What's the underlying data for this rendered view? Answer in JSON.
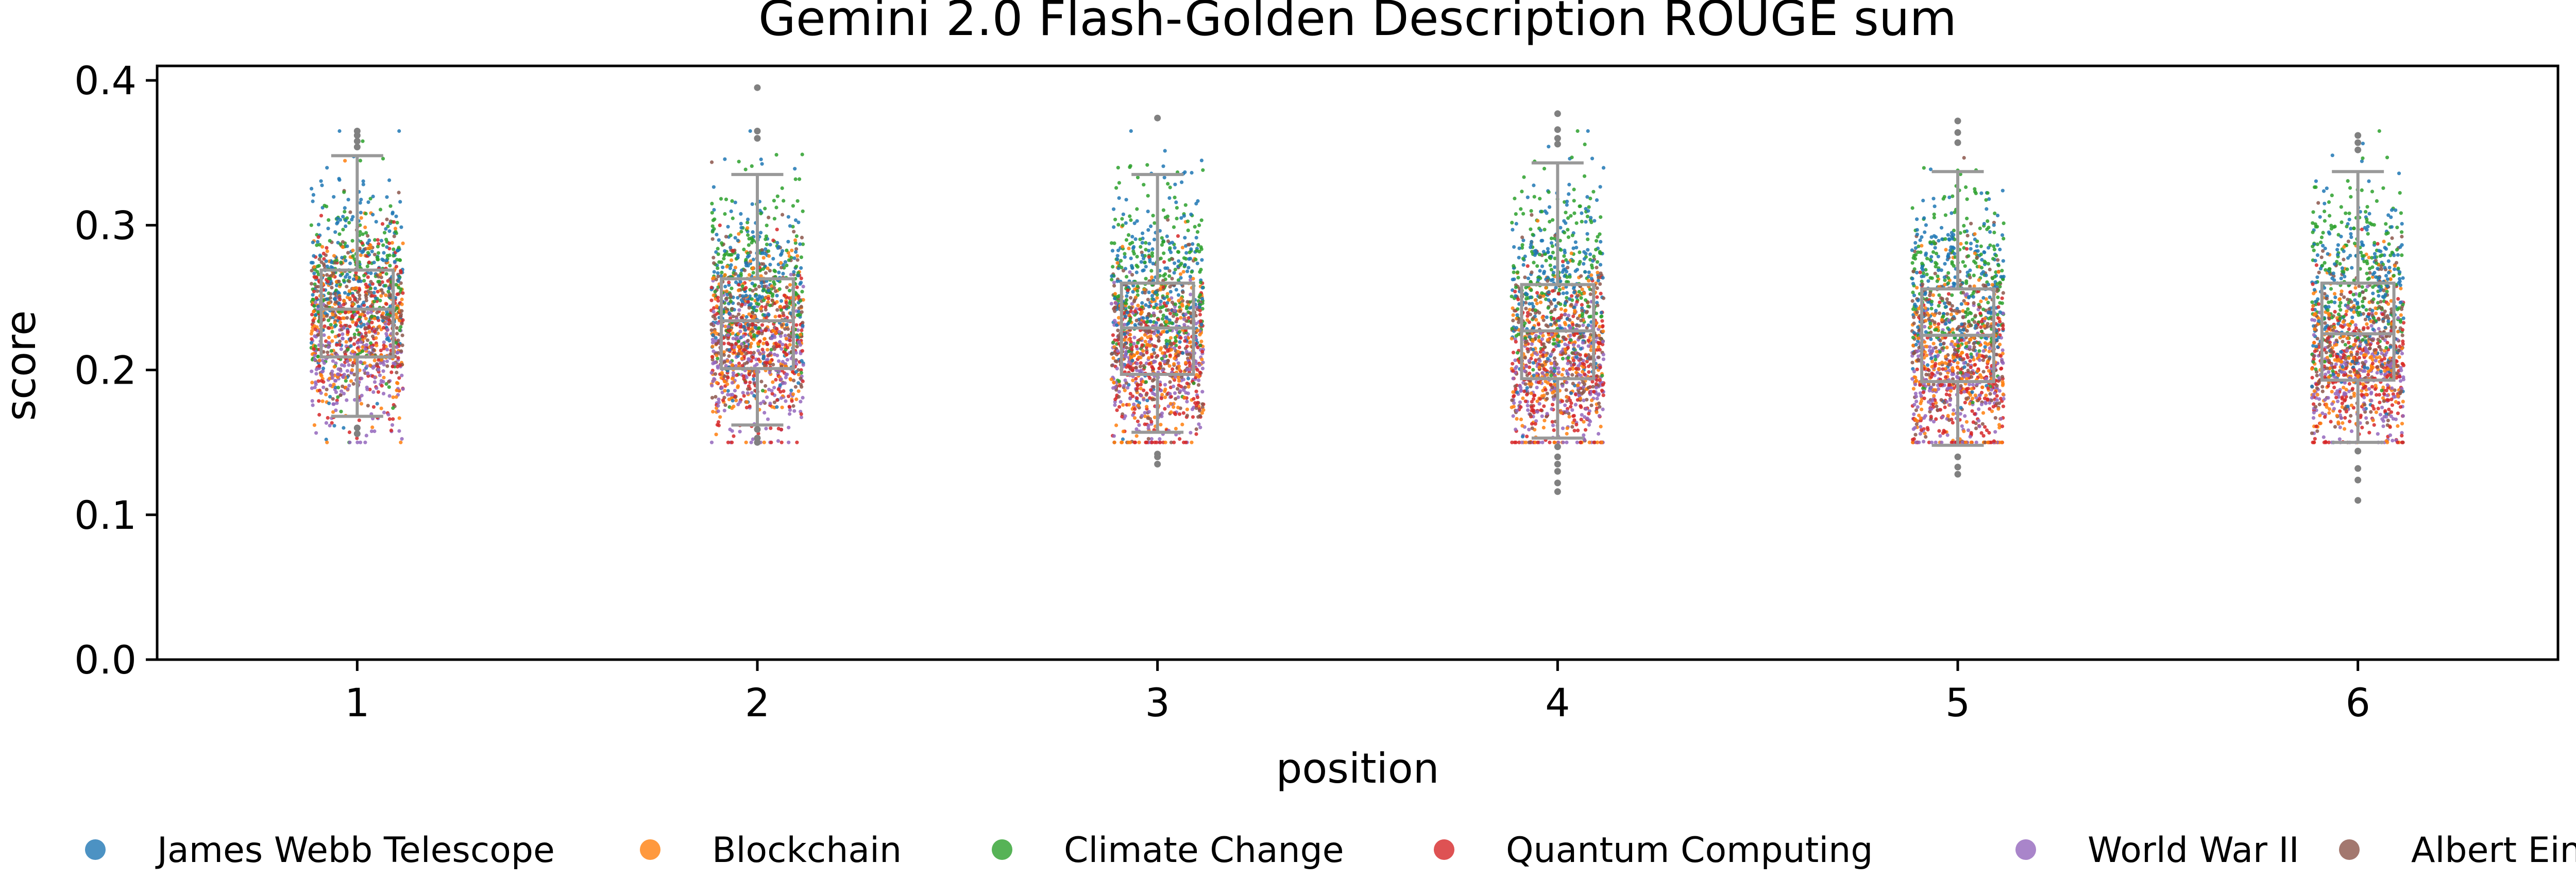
{
  "chart_data": {
    "type": "box",
    "title": "Gemini 2.0 Flash-Golden Description ROUGE sum",
    "xlabel": "position",
    "ylabel": "score",
    "ylim": [
      0.0,
      0.41
    ],
    "yticks": [
      "0.0",
      "0.1",
      "0.2",
      "0.3",
      "0.4"
    ],
    "categories": [
      "1",
      "2",
      "3",
      "4",
      "5",
      "6"
    ],
    "grid": false,
    "legend_position": "bottom",
    "overlay": "jittered-strip-points",
    "boxes": [
      {
        "position": "1",
        "whisker_low": 0.168,
        "q1": 0.209,
        "median": 0.242,
        "q3": 0.269,
        "whisker_high": 0.348
      },
      {
        "position": "2",
        "whisker_low": 0.162,
        "q1": 0.201,
        "median": 0.234,
        "q3": 0.263,
        "whisker_high": 0.335
      },
      {
        "position": "3",
        "whisker_low": 0.157,
        "q1": 0.197,
        "median": 0.229,
        "q3": 0.26,
        "whisker_high": 0.335
      },
      {
        "position": "4",
        "whisker_low": 0.153,
        "q1": 0.194,
        "median": 0.227,
        "q3": 0.259,
        "whisker_high": 0.343
      },
      {
        "position": "5",
        "whisker_low": 0.148,
        "q1": 0.192,
        "median": 0.224,
        "q3": 0.256,
        "whisker_high": 0.337
      },
      {
        "position": "6",
        "whisker_low": 0.15,
        "q1": 0.193,
        "median": 0.225,
        "q3": 0.26,
        "whisker_high": 0.337
      }
    ],
    "outliers": [
      {
        "position": "1",
        "values": [
          0.16,
          0.156,
          0.362,
          0.358,
          0.365,
          0.354
        ]
      },
      {
        "position": "2",
        "values": [
          0.395,
          0.365,
          0.36,
          0.159,
          0.153,
          0.15
        ]
      },
      {
        "position": "3",
        "values": [
          0.374,
          0.142,
          0.135,
          0.14
        ]
      },
      {
        "position": "4",
        "values": [
          0.377,
          0.366,
          0.356,
          0.36,
          0.14,
          0.13,
          0.116,
          0.122,
          0.147,
          0.135
        ]
      },
      {
        "position": "5",
        "values": [
          0.372,
          0.364,
          0.357,
          0.14,
          0.133,
          0.128
        ]
      },
      {
        "position": "6",
        "values": [
          0.362,
          0.357,
          0.352,
          0.11,
          0.132,
          0.124,
          0.144
        ]
      }
    ],
    "series": [
      {
        "name": "James Webb Telescope",
        "color": "#1f77b4"
      },
      {
        "name": "Blockchain",
        "color": "#ff7f0e"
      },
      {
        "name": "Climate Change",
        "color": "#2ca02c"
      },
      {
        "name": "Quantum Computing",
        "color": "#d62728"
      },
      {
        "name": "World War II",
        "color": "#9467bd"
      },
      {
        "name": "Albert Einstein",
        "color": "#8c564b"
      }
    ],
    "strip_summary": [
      {
        "name": "James Webb Telescope",
        "center_by_position": [
          0.265,
          0.262,
          0.258,
          0.258,
          0.256,
          0.258
        ],
        "spread": 0.035
      },
      {
        "name": "Blockchain",
        "center_by_position": [
          0.232,
          0.222,
          0.212,
          0.21,
          0.208,
          0.21
        ],
        "spread": 0.032
      },
      {
        "name": "Climate Change",
        "center_by_position": [
          0.262,
          0.262,
          0.262,
          0.262,
          0.262,
          0.265
        ],
        "spread": 0.033
      },
      {
        "name": "Quantum Computing",
        "center_by_position": [
          0.23,
          0.215,
          0.202,
          0.2,
          0.196,
          0.198
        ],
        "spread": 0.03
      },
      {
        "name": "World War II",
        "center_by_position": [
          0.205,
          0.205,
          0.198,
          0.196,
          0.192,
          0.195
        ],
        "spread": 0.025
      },
      {
        "name": "Albert Einstein",
        "center_by_position": [
          0.24,
          0.23,
          0.222,
          0.22,
          0.218,
          0.22
        ],
        "spread": 0.03
      }
    ],
    "box_color": "#999999",
    "outlier_color": "#808080"
  }
}
